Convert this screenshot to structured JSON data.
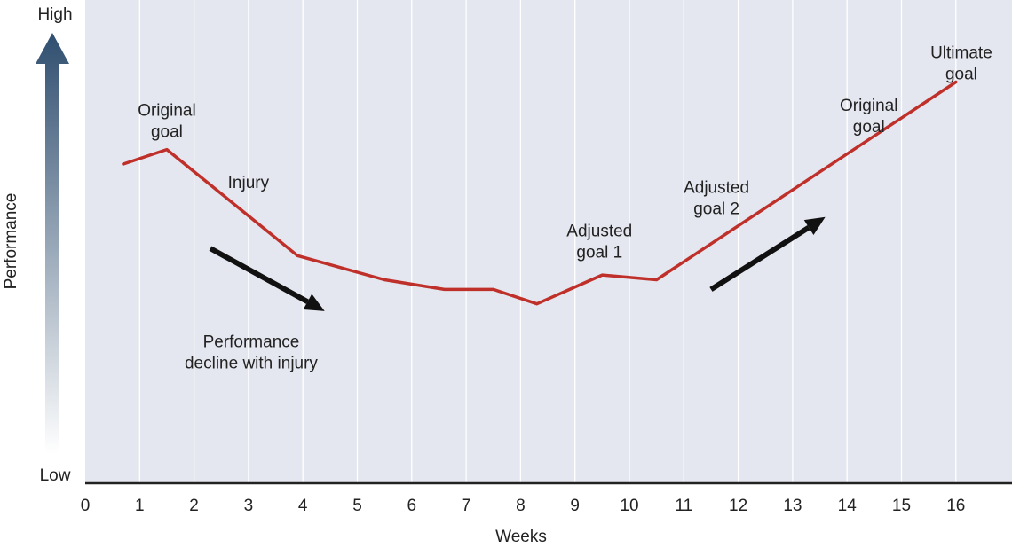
{
  "chart_data": {
    "type": "line",
    "xlabel": "Weeks",
    "ylabel": "Performance",
    "y_high_label": "High",
    "y_low_label": "Low",
    "xlim": [
      0,
      17
    ],
    "ylim": [
      0,
      100
    ],
    "x_ticks": [
      0,
      1,
      2,
      3,
      4,
      5,
      6,
      7,
      8,
      9,
      10,
      11,
      12,
      13,
      14,
      15,
      16
    ],
    "grid": "vertical",
    "series": [
      {
        "name": "Performance",
        "x": [
          0.7,
          1.5,
          3.9,
          5.5,
          6.6,
          7.5,
          8.3,
          9.5,
          10.5,
          16.0
        ],
        "y": [
          66,
          69,
          47,
          42,
          40,
          40,
          37,
          43,
          42,
          83
        ]
      }
    ],
    "annotations": [
      {
        "lines": [
          "Original",
          "goal"
        ],
        "x": 1.5,
        "y": 76
      },
      {
        "lines": [
          "Injury"
        ],
        "x": 3.0,
        "y": 61
      },
      {
        "lines": [
          "Adjusted",
          "goal 1"
        ],
        "x": 9.45,
        "y": 51
      },
      {
        "lines": [
          "Adjusted",
          "goal 2"
        ],
        "x": 11.6,
        "y": 60
      },
      {
        "lines": [
          "Original",
          "goal"
        ],
        "x": 14.4,
        "y": 77
      },
      {
        "lines": [
          "Ultimate",
          "goal"
        ],
        "x": 16.1,
        "y": 88
      },
      {
        "lines": [
          "Performance",
          "decline with injury"
        ],
        "x": 3.05,
        "y": 28
      }
    ],
    "arrows": [
      {
        "from": [
          2.3,
          48.5
        ],
        "to": [
          4.4,
          35.5
        ]
      },
      {
        "from": [
          11.5,
          40
        ],
        "to": [
          13.6,
          55
        ]
      }
    ]
  },
  "colors": {
    "plot_background": "#e4e7ef",
    "line": "#c0302a",
    "arrow": "#111111",
    "axis": "#222222",
    "gradient_top": "#2f4e6f",
    "gradient_bottom": "#ffffff"
  }
}
